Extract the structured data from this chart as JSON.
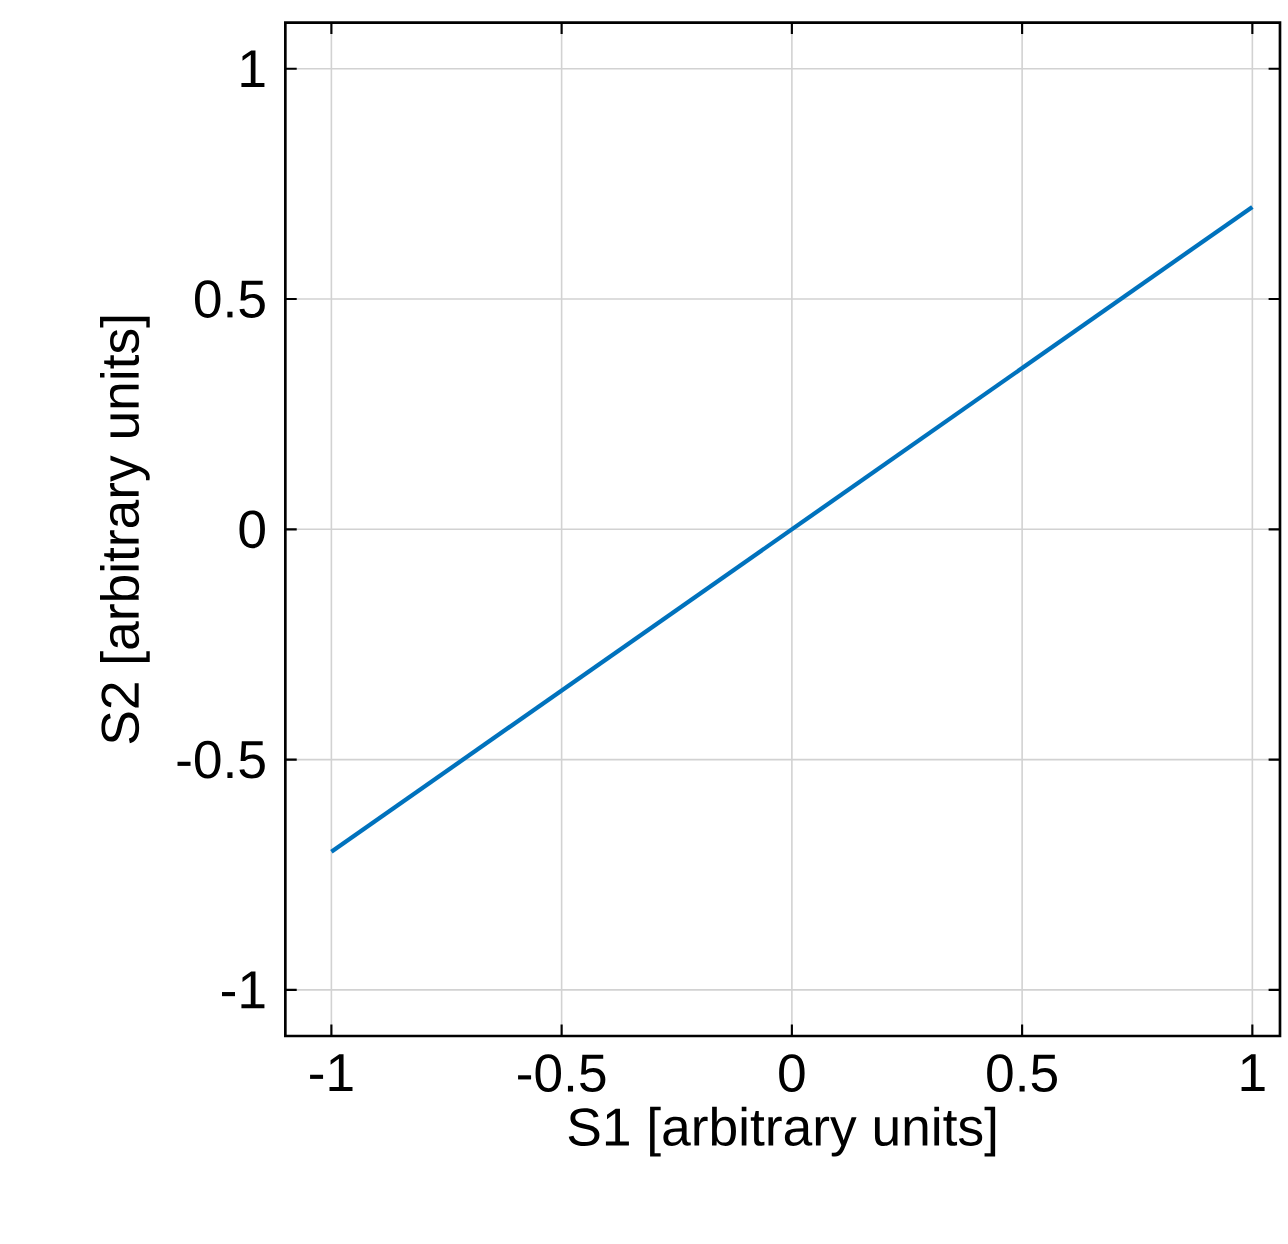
{
  "chart_data": {
    "type": "line",
    "xlabel": "S1   [arbitrary units]",
    "ylabel": "S2   [arbitrary units]",
    "x": [
      -1,
      1
    ],
    "series": [
      {
        "color": "#0072bd",
        "values": [
          -0.7,
          0.7
        ]
      }
    ],
    "xlim": [
      -1.1,
      1.06
    ],
    "ylim": [
      -1.1,
      1.1
    ],
    "xticks": [
      -1,
      -0.5,
      0,
      0.5,
      1
    ],
    "yticks": [
      -1,
      -0.5,
      0,
      0.5,
      1
    ],
    "grid": true,
    "line_style": "solid",
    "marker": "none"
  }
}
